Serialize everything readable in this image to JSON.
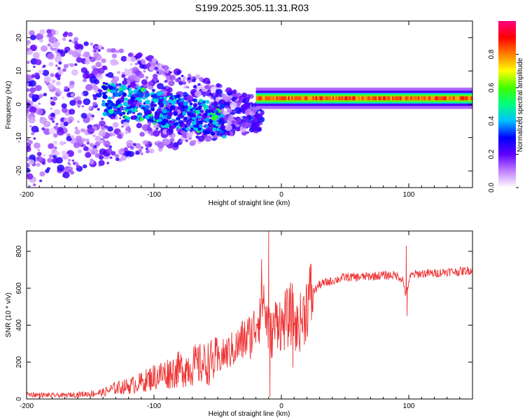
{
  "title": "S199.2025.305.11.31.R03",
  "chart_data": [
    {
      "type": "heatmap",
      "id": "spectrogram",
      "xlabel": "Height of straight line (km)",
      "ylabel": "Frequency (Hz)",
      "xlim": [
        -200,
        150
      ],
      "ylim": [
        -25,
        25
      ],
      "xticks": [
        -200,
        -100,
        0,
        100
      ],
      "xtick_labels": [
        "-200",
        "-100",
        "0",
        "100"
      ],
      "yticks": [
        -20,
        -10,
        0,
        10,
        20
      ],
      "ytick_labels": [
        "-20",
        "-10",
        "0",
        "10",
        "20"
      ],
      "colorbar": {
        "label": "Normalized spectral amplitude",
        "range": [
          0,
          1
        ],
        "ticks": [
          0.0,
          0.2,
          0.4,
          0.6,
          0.8
        ],
        "tick_labels": [
          "0.0",
          "0.2",
          "0.4",
          "0.6",
          "0.8"
        ],
        "colors": [
          "#ffffff",
          "#c080ff",
          "#6000ff",
          "#0000ff",
          "#00c0ff",
          "#00ff80",
          "#40ff00",
          "#ffff00",
          "#ff8000",
          "#ff0000",
          "#ff0080"
        ]
      },
      "features": {
        "carrier_line": {
          "x_start": -20,
          "x_end": 150,
          "frequency_hz": 1.8,
          "amplitude": 0.9
        },
        "spread_region": {
          "x_start": -200,
          "x_end": -20,
          "freq_spread_hz": 25
        }
      }
    },
    {
      "type": "line",
      "id": "snr",
      "xlabel": "Height of straight line (km)",
      "ylabel": "SNR (10 * v/v)",
      "xlim": [
        -200,
        150
      ],
      "ylim": [
        0,
        910
      ],
      "xticks": [
        -200,
        -100,
        0,
        100
      ],
      "xtick_labels": [
        "-200",
        "-100",
        "0",
        "100"
      ],
      "yticks": [
        0,
        200,
        400,
        600,
        800
      ],
      "ytick_labels": [
        "0",
        "200",
        "400",
        "600",
        "800"
      ],
      "color": "#ee3333",
      "series": [
        {
          "name": "SNR",
          "x": [
            -200,
            -190,
            -180,
            -170,
            -160,
            -150,
            -140,
            -130,
            -120,
            -110,
            -100,
            -90,
            -80,
            -70,
            -60,
            -50,
            -45,
            -40,
            -35,
            -30,
            -25,
            -22,
            -20,
            -18,
            -16,
            -15,
            -13,
            -10,
            -8,
            -5,
            -2,
            0,
            3,
            6,
            8,
            10,
            12,
            15,
            18,
            20,
            25,
            30,
            40,
            50,
            60,
            70,
            80,
            90,
            95,
            98,
            100,
            102,
            105,
            110,
            120,
            130,
            140,
            150
          ],
          "y": [
            25,
            22,
            20,
            20,
            25,
            28,
            35,
            60,
            70,
            90,
            120,
            140,
            160,
            180,
            190,
            210,
            240,
            260,
            280,
            320,
            340,
            360,
            420,
            460,
            520,
            600,
            480,
            380,
            340,
            400,
            460,
            380,
            430,
            440,
            470,
            420,
            380,
            420,
            460,
            520,
            580,
            620,
            640,
            660,
            660,
            665,
            670,
            670,
            650,
            560,
            640,
            670,
            675,
            680,
            680,
            690,
            690,
            700
          ]
        }
      ],
      "spikes": [
        {
          "x": -10,
          "y": 910
        },
        {
          "x": -9,
          "y": 10
        },
        {
          "x": 98,
          "y": 830
        },
        {
          "x": 98.6,
          "y": 450
        },
        {
          "x": 9,
          "y": 170
        }
      ]
    }
  ]
}
